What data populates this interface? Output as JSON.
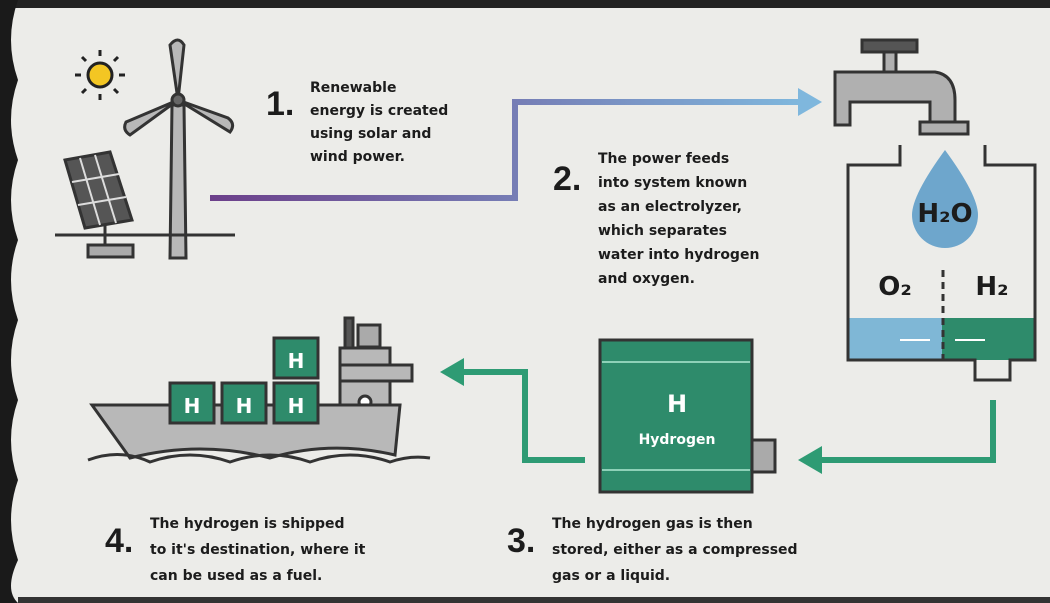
{
  "steps": [
    {
      "number": "1.",
      "lines": [
        "Renewable",
        "energy is created",
        "using solar and",
        "wind power."
      ]
    },
    {
      "number": "2.",
      "lines": [
        "The power feeds",
        "into system known",
        "as an electrolyzer,",
        "which separates",
        "water into hydrogen",
        "and oxygen."
      ]
    },
    {
      "number": "3.",
      "lines": [
        "The hydrogen gas is then",
        "stored, either as a compressed",
        "gas or a liquid."
      ]
    },
    {
      "number": "4.",
      "lines": [
        "The hydrogen is shipped",
        "to it's destination, where it",
        "can be used as a fuel."
      ]
    }
  ],
  "labels": {
    "water": "H₂O",
    "oxygen": "O₂",
    "hydrogen": "H₂",
    "tank_symbol": "H",
    "tank_name": "Hydrogen",
    "container_symbol": "H"
  }
}
